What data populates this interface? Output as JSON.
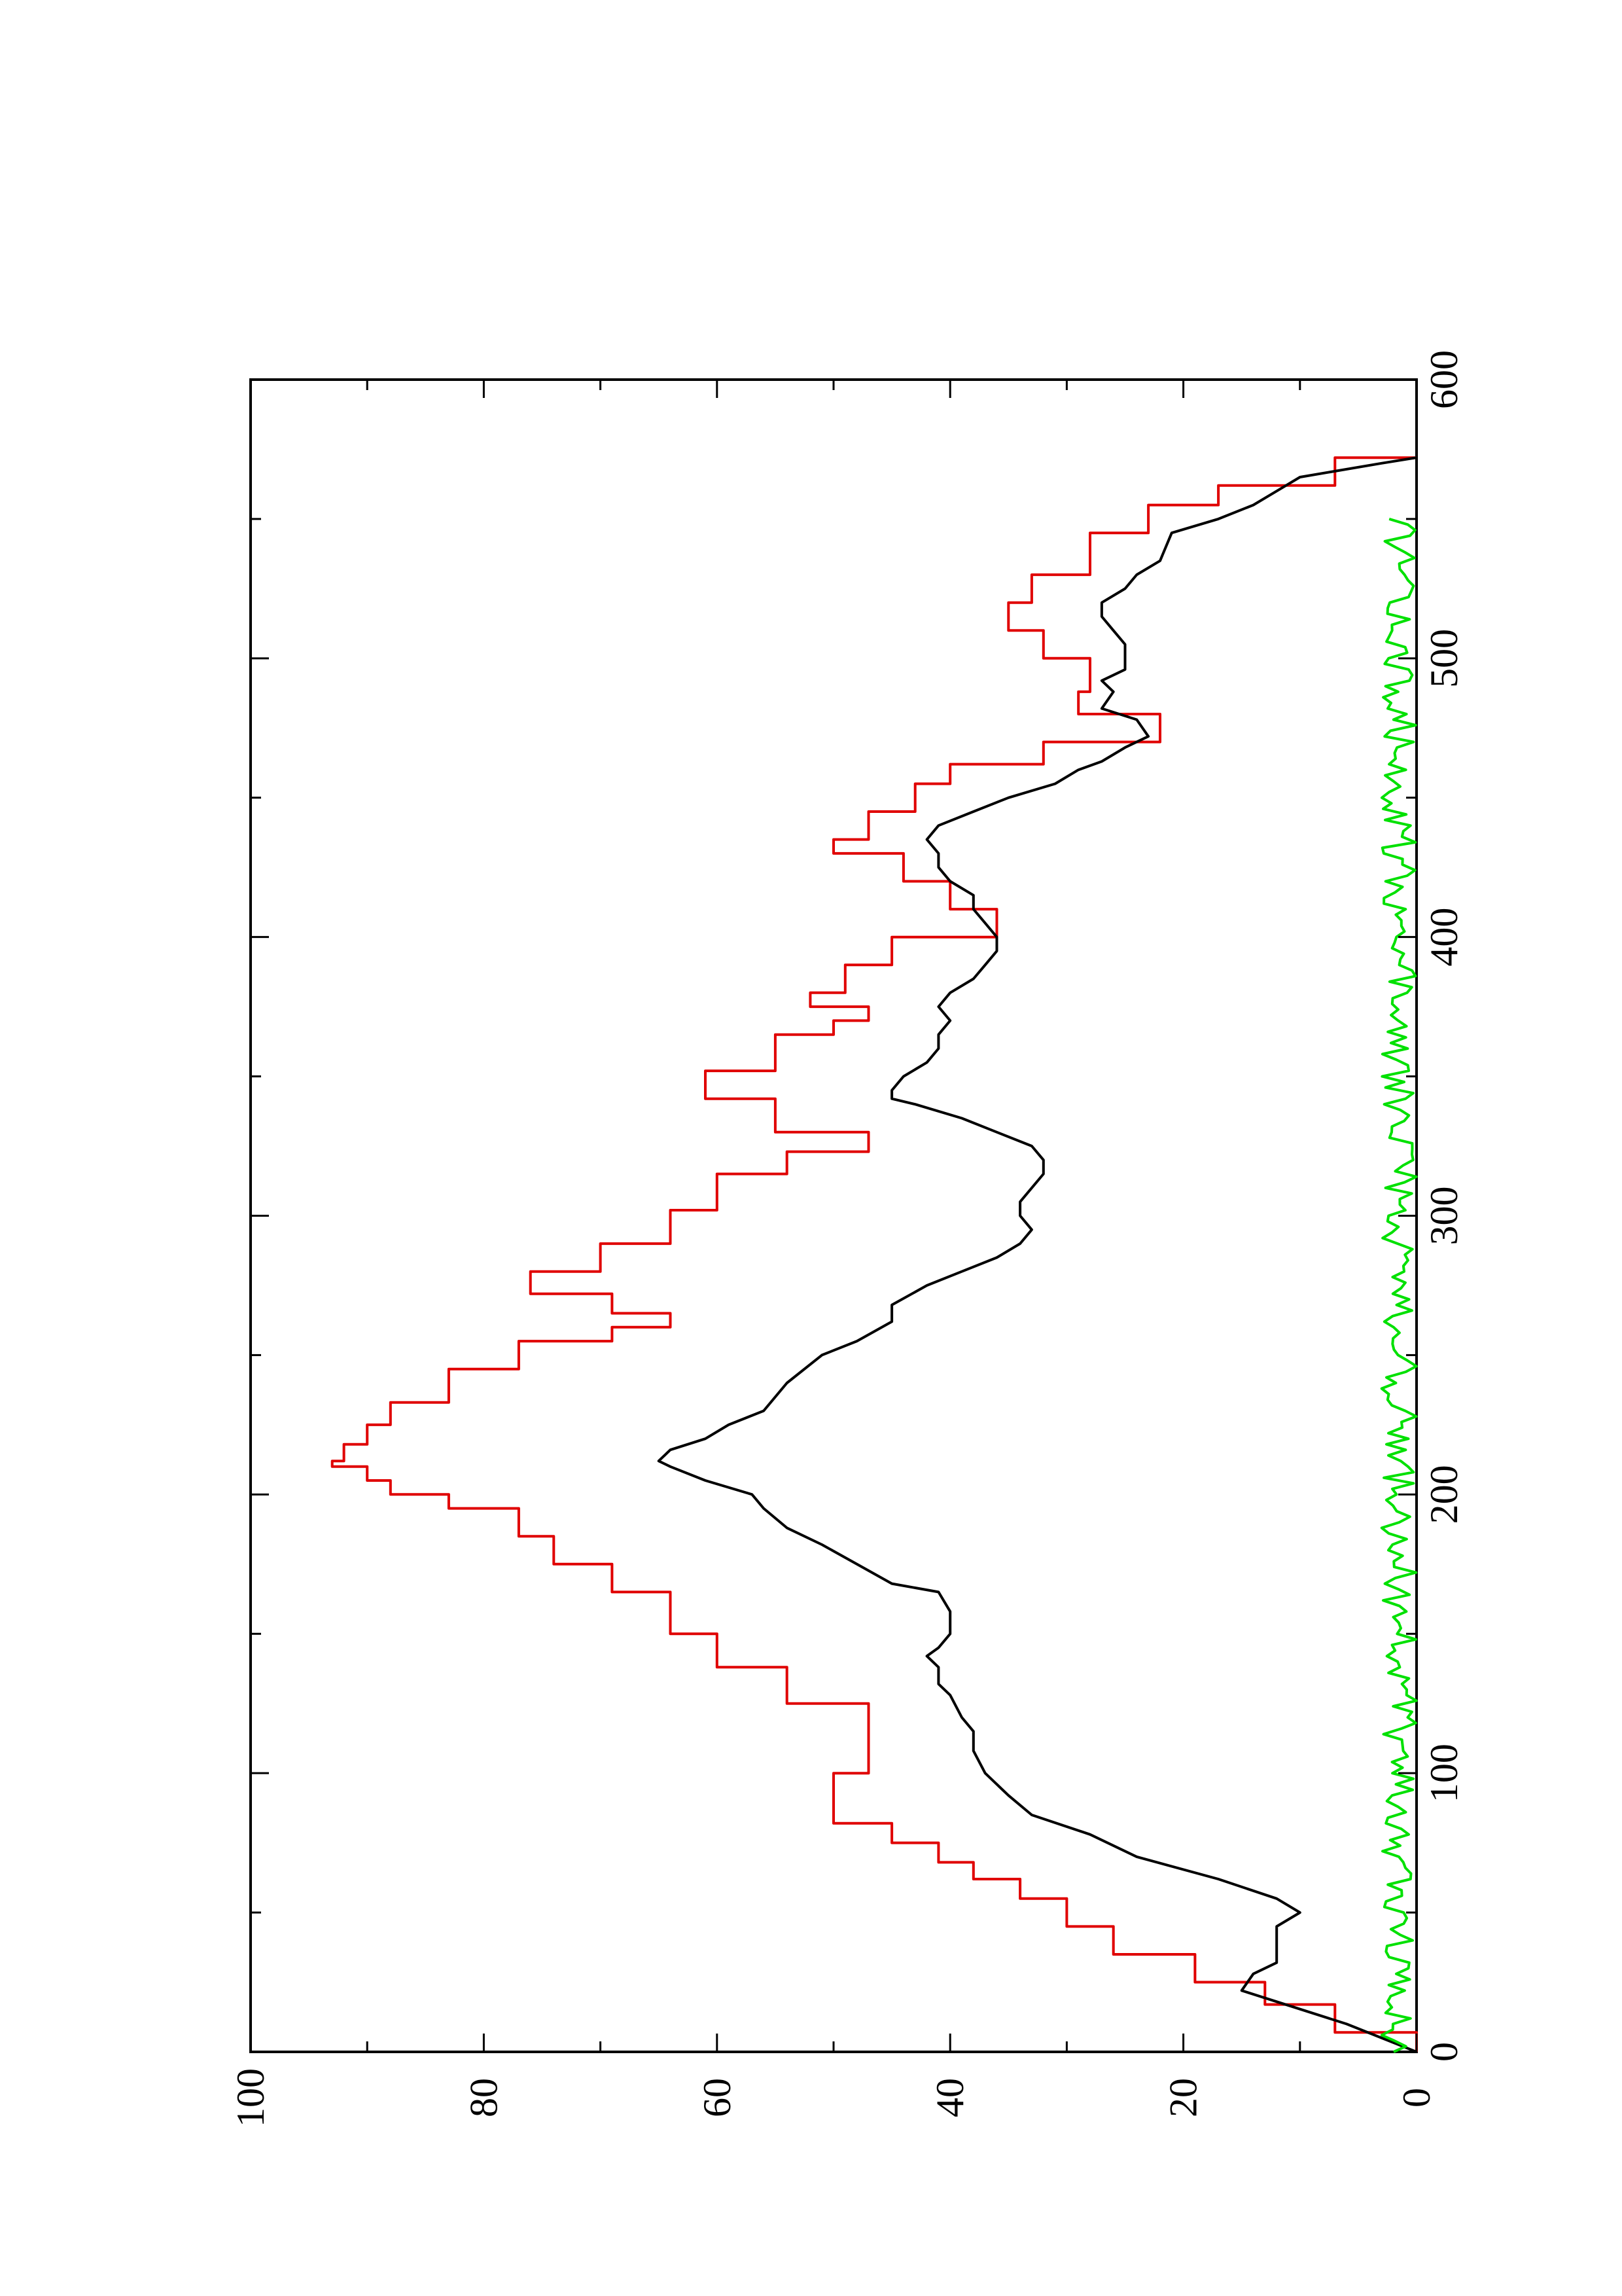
{
  "chart_data": {
    "type": "line",
    "orientation": "rotated 90 degrees counter-clockwise (x axis runs bottom-to-top along the right side)",
    "title": "",
    "xlabel": "",
    "ylabel": "",
    "xlim": [
      0,
      600
    ],
    "ylim": [
      0,
      100
    ],
    "x_ticks": [
      "0",
      "100",
      "200",
      "300",
      "400",
      "500",
      "600"
    ],
    "y_ticks": [
      "0",
      "20",
      "40",
      "60",
      "80",
      "100"
    ],
    "grid": false,
    "legend": "none",
    "series": [
      {
        "color": "#e00000",
        "style": "step",
        "points": [
          [
            0,
            0
          ],
          [
            7,
            0
          ],
          [
            7,
            7
          ],
          [
            17,
            7
          ],
          [
            17,
            13
          ],
          [
            25,
            13
          ],
          [
            25,
            19
          ],
          [
            35,
            19
          ],
          [
            35,
            26
          ],
          [
            45,
            26
          ],
          [
            45,
            30
          ],
          [
            55,
            30
          ],
          [
            55,
            34
          ],
          [
            62,
            34
          ],
          [
            62,
            38
          ],
          [
            68,
            38
          ],
          [
            68,
            41
          ],
          [
            75,
            41
          ],
          [
            75,
            45
          ],
          [
            82,
            45
          ],
          [
            82,
            50
          ],
          [
            100,
            50
          ],
          [
            100,
            47
          ],
          [
            118,
            47
          ],
          [
            118,
            47
          ],
          [
            125,
            47
          ],
          [
            125,
            54
          ],
          [
            138,
            54
          ],
          [
            138,
            60
          ],
          [
            150,
            60
          ],
          [
            150,
            64
          ],
          [
            165,
            64
          ],
          [
            165,
            69
          ],
          [
            175,
            69
          ],
          [
            175,
            74
          ],
          [
            185,
            74
          ],
          [
            185,
            77
          ],
          [
            195,
            77
          ],
          [
            195,
            83
          ],
          [
            200,
            83
          ],
          [
            200,
            88
          ],
          [
            205,
            88
          ],
          [
            205,
            90
          ],
          [
            210,
            90
          ],
          [
            210,
            93
          ],
          [
            212,
            93
          ],
          [
            212,
            92
          ],
          [
            218,
            92
          ],
          [
            218,
            90
          ],
          [
            225,
            90
          ],
          [
            225,
            88
          ],
          [
            233,
            88
          ],
          [
            233,
            83
          ],
          [
            245,
            83
          ],
          [
            245,
            77
          ],
          [
            255,
            77
          ],
          [
            255,
            69
          ],
          [
            260,
            69
          ],
          [
            260,
            64
          ],
          [
            265,
            64
          ],
          [
            265,
            69
          ],
          [
            272,
            69
          ],
          [
            272,
            76
          ],
          [
            280,
            76
          ],
          [
            280,
            70
          ],
          [
            290,
            70
          ],
          [
            290,
            64
          ],
          [
            302,
            64
          ],
          [
            302,
            60
          ],
          [
            315,
            60
          ],
          [
            315,
            54
          ],
          [
            323,
            54
          ],
          [
            323,
            47
          ],
          [
            330,
            47
          ],
          [
            330,
            55
          ],
          [
            342,
            55
          ],
          [
            342,
            61
          ],
          [
            352,
            61
          ],
          [
            352,
            55
          ],
          [
            365,
            55
          ],
          [
            365,
            50
          ],
          [
            370,
            50
          ],
          [
            370,
            47
          ],
          [
            375,
            47
          ],
          [
            375,
            52
          ],
          [
            380,
            52
          ],
          [
            380,
            49
          ],
          [
            390,
            49
          ],
          [
            390,
            45
          ],
          [
            400,
            45
          ],
          [
            400,
            36
          ],
          [
            410,
            36
          ],
          [
            410,
            40
          ],
          [
            420,
            40
          ],
          [
            420,
            44
          ],
          [
            430,
            44
          ],
          [
            430,
            50
          ],
          [
            435,
            50
          ],
          [
            435,
            47
          ],
          [
            445,
            47
          ],
          [
            445,
            43
          ],
          [
            455,
            43
          ],
          [
            455,
            40
          ],
          [
            462,
            40
          ],
          [
            462,
            32
          ],
          [
            470,
            32
          ],
          [
            470,
            22
          ],
          [
            480,
            22
          ],
          [
            480,
            29
          ],
          [
            488,
            29
          ],
          [
            488,
            28
          ],
          [
            500,
            28
          ],
          [
            500,
            32
          ],
          [
            510,
            32
          ],
          [
            510,
            35
          ],
          [
            520,
            35
          ],
          [
            520,
            33
          ],
          [
            530,
            33
          ],
          [
            530,
            28
          ],
          [
            545,
            28
          ],
          [
            545,
            23
          ],
          [
            555,
            23
          ],
          [
            555,
            17
          ],
          [
            562,
            17
          ],
          [
            562,
            7
          ],
          [
            572,
            7
          ],
          [
            572,
            0
          ]
        ]
      },
      {
        "color": "#000000",
        "style": "line",
        "points": [
          [
            0,
            0
          ],
          [
            10,
            6
          ],
          [
            18,
            12
          ],
          [
            22,
            15
          ],
          [
            28,
            14
          ],
          [
            32,
            12
          ],
          [
            38,
            12
          ],
          [
            45,
            12
          ],
          [
            50,
            10
          ],
          [
            55,
            12
          ],
          [
            62,
            17
          ],
          [
            70,
            24
          ],
          [
            78,
            28
          ],
          [
            85,
            33
          ],
          [
            92,
            35
          ],
          [
            100,
            37
          ],
          [
            108,
            38
          ],
          [
            115,
            38
          ],
          [
            120,
            39
          ],
          [
            128,
            40
          ],
          [
            132,
            41
          ],
          [
            138,
            41
          ],
          [
            142,
            42
          ],
          [
            145,
            41
          ],
          [
            150,
            40
          ],
          [
            158,
            40
          ],
          [
            165,
            41
          ],
          [
            168,
            45
          ],
          [
            175,
            48
          ],
          [
            182,
            51
          ],
          [
            188,
            54
          ],
          [
            195,
            56
          ],
          [
            200,
            57
          ],
          [
            205,
            61
          ],
          [
            210,
            64
          ],
          [
            212,
            65
          ],
          [
            216,
            64
          ],
          [
            220,
            61
          ],
          [
            225,
            59
          ],
          [
            230,
            56
          ],
          [
            240,
            54
          ],
          [
            250,
            51
          ],
          [
            255,
            48
          ],
          [
            262,
            45
          ],
          [
            268,
            45
          ],
          [
            275,
            42
          ],
          [
            280,
            39
          ],
          [
            285,
            36
          ],
          [
            290,
            34
          ],
          [
            295,
            33
          ],
          [
            300,
            34
          ],
          [
            305,
            34
          ],
          [
            315,
            32
          ],
          [
            320,
            32
          ],
          [
            325,
            33
          ],
          [
            330,
            36
          ],
          [
            335,
            39
          ],
          [
            340,
            43
          ],
          [
            342,
            45
          ],
          [
            345,
            45
          ],
          [
            350,
            44
          ],
          [
            355,
            42
          ],
          [
            360,
            41
          ],
          [
            365,
            41
          ],
          [
            370,
            40
          ],
          [
            375,
            41
          ],
          [
            380,
            40
          ],
          [
            385,
            38
          ],
          [
            390,
            37
          ],
          [
            395,
            36
          ],
          [
            400,
            36
          ],
          [
            405,
            37
          ],
          [
            410,
            38
          ],
          [
            415,
            38
          ],
          [
            420,
            40
          ],
          [
            425,
            41
          ],
          [
            430,
            41
          ],
          [
            435,
            42
          ],
          [
            440,
            41
          ],
          [
            445,
            38
          ],
          [
            450,
            35
          ],
          [
            455,
            31
          ],
          [
            460,
            29
          ],
          [
            463,
            27
          ],
          [
            468,
            25
          ],
          [
            470,
            24
          ],
          [
            472,
            23
          ],
          [
            478,
            24
          ],
          [
            482,
            27
          ],
          [
            488,
            26
          ],
          [
            492,
            27
          ],
          [
            496,
            25
          ],
          [
            500,
            25
          ],
          [
            505,
            25
          ],
          [
            510,
            26
          ],
          [
            515,
            27
          ],
          [
            520,
            27
          ],
          [
            525,
            25
          ],
          [
            530,
            24
          ],
          [
            535,
            22
          ],
          [
            545,
            21
          ],
          [
            550,
            17
          ],
          [
            555,
            14
          ],
          [
            560,
            12
          ],
          [
            565,
            10
          ],
          [
            570,
            3
          ],
          [
            572,
            0
          ]
        ]
      },
      {
        "color": "#00e000",
        "style": "line",
        "description": "noisy fluctuation near zero from x=0 to x≈550",
        "y_range": [
          0,
          3
        ]
      }
    ]
  }
}
